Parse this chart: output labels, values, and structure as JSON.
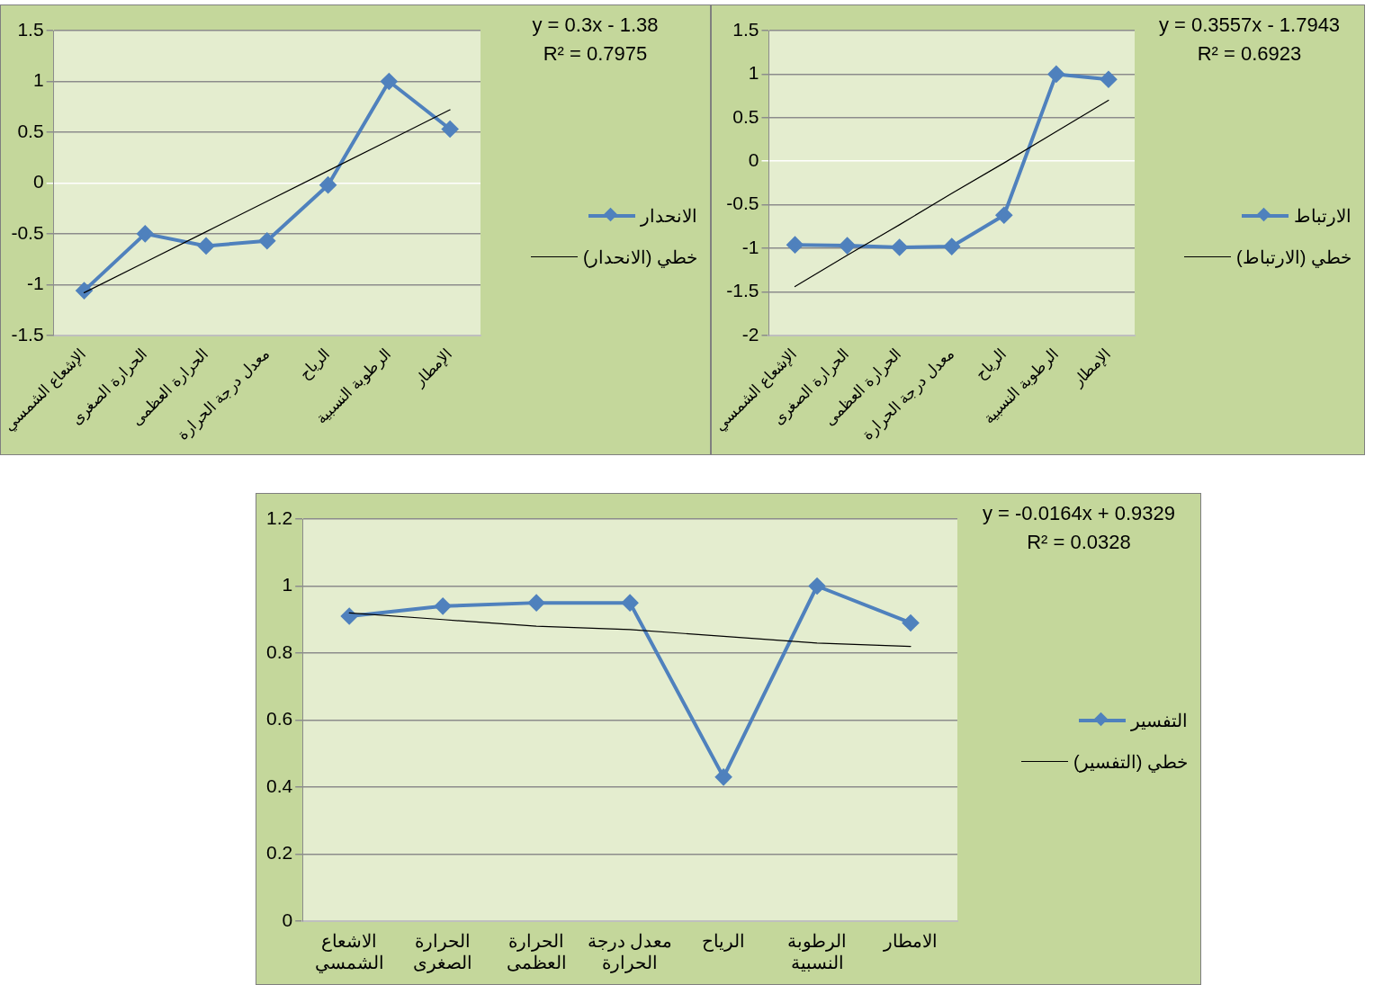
{
  "chart_data": [
    {
      "type": "line",
      "categories": [
        "الإشعاع الشمسي",
        "الحرارة الصغرى",
        "الحرارة العظمى",
        "معدل درجة الحرارة",
        "الرياح",
        "الرطوبة النسبية",
        "الإمطار"
      ],
      "series": [
        {
          "name": "الانحدار",
          "color": "#4f81bd",
          "values": [
            -1.06,
            -0.5,
            -0.62,
            -0.57,
            -0.02,
            1.0,
            0.53
          ]
        },
        {
          "name": "خطي (الانحدار)",
          "color": "#000000",
          "marker": "none",
          "values": [
            -1.08,
            -0.78,
            -0.48,
            -0.18,
            0.12,
            0.42,
            0.72
          ]
        }
      ],
      "marker": "diamond",
      "ylim": [
        -1.5,
        1.5
      ],
      "yticks": [
        -1.5,
        -1,
        -0.5,
        0,
        0.5,
        1,
        1.5
      ],
      "grid": "y",
      "legend": "right",
      "annotations": [
        "y = 0.3x - 1.38",
        "R² = 0.7975"
      ]
    },
    {
      "type": "line",
      "categories": [
        "الإشعاع الشمسي",
        "الحرارة الصغرى",
        "الحرارة العظمى",
        "معدل درجة الحرارة",
        "الرياح",
        "الرطوبة النسبية",
        "الإمطار"
      ],
      "series": [
        {
          "name": "الارتباط",
          "color": "#4f81bd",
          "values": [
            -0.96,
            -0.97,
            -0.99,
            -0.98,
            -0.62,
            1.0,
            0.94
          ]
        },
        {
          "name": "خطي (الارتباط)",
          "color": "#000000",
          "marker": "none",
          "values": [
            -1.44,
            -1.08,
            -0.73,
            -0.37,
            -0.02,
            0.34,
            0.7
          ]
        }
      ],
      "marker": "diamond",
      "ylim": [
        -2,
        1.5
      ],
      "yticks": [
        -2,
        -1.5,
        -1,
        -0.5,
        0,
        0.5,
        1,
        1.5
      ],
      "grid": "y",
      "legend": "right",
      "annotations": [
        "y = 0.3557x - 1.7943",
        "R² = 0.6923"
      ]
    },
    {
      "type": "line",
      "categories": [
        "الاشعاع الشمسي",
        "الحرارة الصغرى",
        "الحرارة العظمى",
        "معدل درجة الحرارة",
        "الرياح",
        "الرطوبة النسبية",
        "الامطار"
      ],
      "series": [
        {
          "name": "التفسير",
          "color": "#4f81bd",
          "values": [
            0.91,
            0.94,
            0.95,
            0.95,
            0.43,
            1.0,
            0.89
          ]
        },
        {
          "name": "خطي (التفسير)",
          "color": "#000000",
          "marker": "none",
          "values": [
            0.92,
            0.9,
            0.88,
            0.87,
            0.85,
            0.83,
            0.82
          ]
        }
      ],
      "marker": "diamond",
      "ylim": [
        0,
        1.2
      ],
      "yticks": [
        0,
        0.2,
        0.4,
        0.6,
        0.8,
        1,
        1.2
      ],
      "grid": "y",
      "legend": "right",
      "annotations": [
        "y = -0.0164x + 0.9329",
        "R² = 0.0328"
      ]
    }
  ]
}
